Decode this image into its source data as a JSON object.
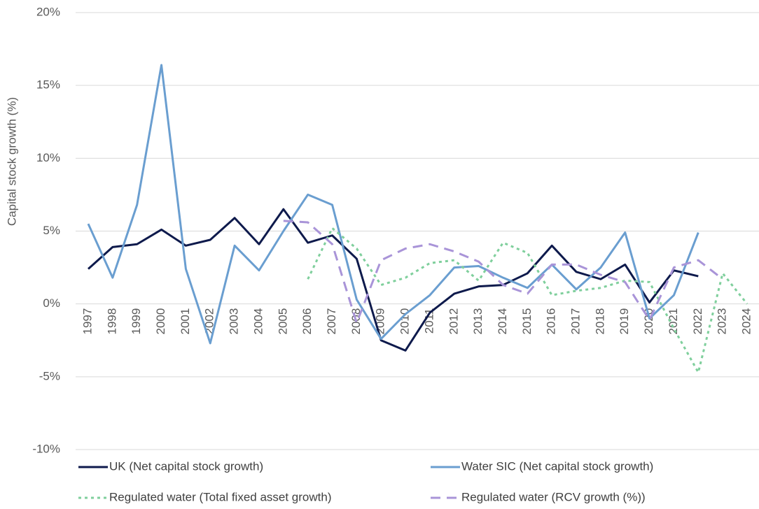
{
  "chart_data": {
    "type": "line",
    "y_label": "Capital stock growth (%)",
    "categories": [
      "1997",
      "1998",
      "1999",
      "2000",
      "2001",
      "2002",
      "2003",
      "2004",
      "2005",
      "2006",
      "2007",
      "2008",
      "2009",
      "2010",
      "2011",
      "2012",
      "2013",
      "2014",
      "2015",
      "2016",
      "2017",
      "2018",
      "2019",
      "2020",
      "2021",
      "2022",
      "2023",
      "2024"
    ],
    "ylim": [
      -10,
      20
    ],
    "yticks": [
      {
        "value": -10,
        "label": "-10%"
      },
      {
        "value": -5,
        "label": "-5%"
      },
      {
        "value": 0,
        "label": "0%"
      },
      {
        "value": 5,
        "label": "5%"
      },
      {
        "value": 10,
        "label": "10%"
      },
      {
        "value": 15,
        "label": "15%"
      },
      {
        "value": 20,
        "label": "20%"
      }
    ],
    "grid": true,
    "legend": "bottom",
    "series": [
      {
        "name": "UK (Net capital stock growth)",
        "color": "#0e1a4c",
        "dash": "solid",
        "values": [
          2.4,
          3.9,
          4.1,
          5.1,
          4.0,
          4.4,
          5.9,
          4.1,
          6.5,
          4.2,
          4.7,
          3.1,
          -2.5,
          -3.2,
          -0.6,
          0.7,
          1.2,
          1.3,
          2.1,
          4.0,
          2.2,
          1.7,
          2.7,
          0.1,
          2.3,
          1.9,
          null,
          null
        ]
      },
      {
        "name": "Water SIC (Net capital stock growth)",
        "color": "#6a9ed0",
        "dash": "solid",
        "values": [
          5.5,
          1.8,
          6.8,
          16.4,
          2.4,
          -2.7,
          4.0,
          2.3,
          5.0,
          7.5,
          6.8,
          0.3,
          -2.4,
          -0.7,
          0.6,
          2.5,
          2.6,
          1.8,
          1.1,
          2.7,
          1.0,
          2.5,
          4.9,
          -1.0,
          0.6,
          4.9,
          null,
          null
        ]
      },
      {
        "name": "Regulated water (Total fixed asset growth)",
        "color": "#7fcf9c",
        "dash": "dotted",
        "values": [
          null,
          null,
          null,
          null,
          null,
          null,
          null,
          null,
          null,
          1.7,
          5.2,
          3.8,
          1.3,
          1.8,
          2.8,
          3.0,
          1.6,
          4.2,
          3.5,
          0.6,
          0.9,
          1.1,
          1.6,
          1.5,
          -1.7,
          -4.7,
          2.1,
          0.0
        ]
      },
      {
        "name": "Regulated water (RCV growth (%))",
        "color": "#a994d8",
        "dash": "dashed",
        "values": [
          null,
          null,
          null,
          null,
          null,
          null,
          null,
          null,
          5.7,
          5.6,
          4.1,
          -1.3,
          3.0,
          3.8,
          4.1,
          3.6,
          2.9,
          1.3,
          0.7,
          2.7,
          2.7,
          2.0,
          1.5,
          -1.1,
          2.5,
          3.0,
          1.7,
          null
        ]
      }
    ]
  }
}
